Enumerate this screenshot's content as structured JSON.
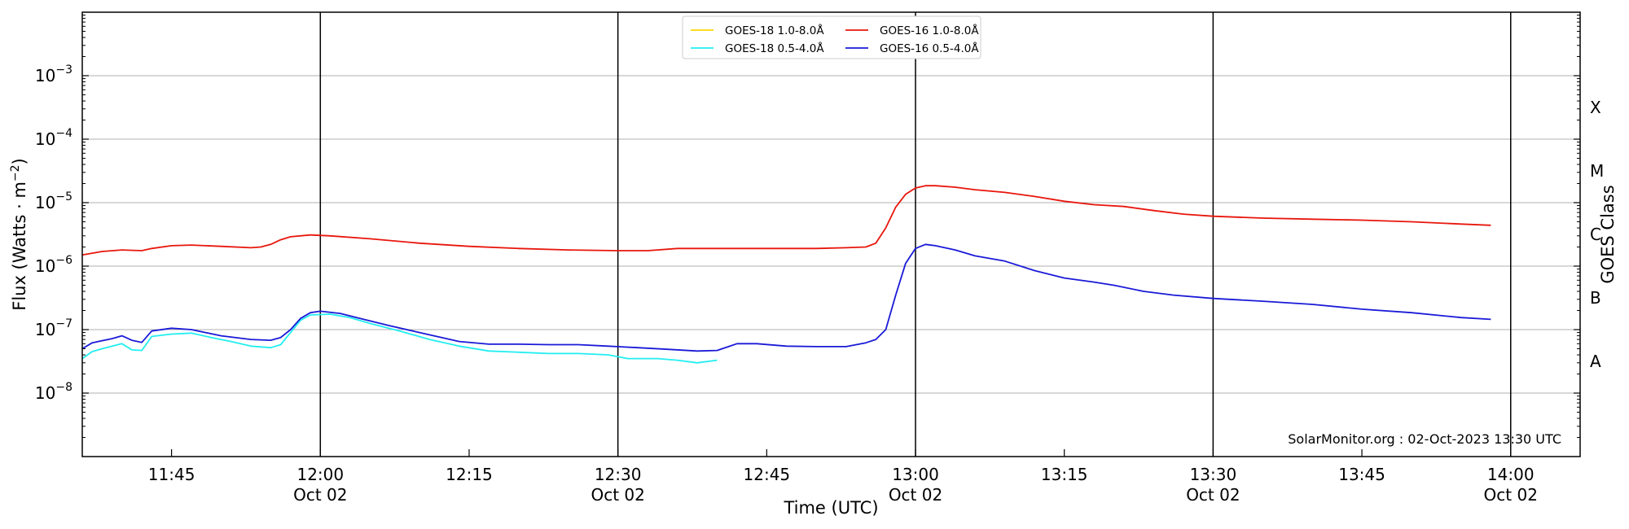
{
  "chart_data": {
    "type": "line",
    "xlabel": "Time (UTC)",
    "ylabel_main": "Flux (Watts · m",
    "ylabel_sup": "−2",
    "ylabel_close": ")",
    "right_label": "GOES Class",
    "credit": "SolarMonitor.org : 02-Oct-2023 13:30 UTC",
    "y_scale": "log",
    "ylim": [
      1e-09,
      0.01
    ],
    "xlim": [
      "11:36",
      "14:07"
    ],
    "grid": "horizontal at decades",
    "legend_position": "top-center",
    "y_ticks": [
      {
        "base": "10",
        "exp": "−8",
        "value": 1e-08
      },
      {
        "base": "10",
        "exp": "−7",
        "value": 1e-07
      },
      {
        "base": "10",
        "exp": "−6",
        "value": 1e-06
      },
      {
        "base": "10",
        "exp": "−5",
        "value": 1e-05
      },
      {
        "base": "10",
        "exp": "−4",
        "value": 0.0001
      },
      {
        "base": "10",
        "exp": "−3",
        "value": 0.001
      }
    ],
    "x_ticks": [
      {
        "time": "11:45",
        "label": "11:45",
        "date": ""
      },
      {
        "time": "12:00",
        "label": "12:00",
        "date": "Oct 02"
      },
      {
        "time": "12:15",
        "label": "12:15",
        "date": ""
      },
      {
        "time": "12:30",
        "label": "12:30",
        "date": "Oct 02"
      },
      {
        "time": "12:45",
        "label": "12:45",
        "date": ""
      },
      {
        "time": "13:00",
        "label": "13:00",
        "date": "Oct 02"
      },
      {
        "time": "13:15",
        "label": "13:15",
        "date": ""
      },
      {
        "time": "13:30",
        "label": "13:30",
        "date": "Oct 02"
      },
      {
        "time": "13:45",
        "label": "13:45",
        "date": ""
      },
      {
        "time": "14:00",
        "label": "14:00",
        "date": "Oct 02"
      }
    ],
    "goes_classes": [
      {
        "label": "A",
        "value": 3.16e-08
      },
      {
        "label": "B",
        "value": 3.16e-07
      },
      {
        "label": "C",
        "value": 3.16e-06
      },
      {
        "label": "M",
        "value": 3.16e-05
      },
      {
        "label": "X",
        "value": 0.000316
      }
    ],
    "series": [
      {
        "name": "GOES-18 1.0-8.0Å",
        "color": "#ffd700",
        "points": []
      },
      {
        "name": "GOES-16 1.0-8.0Å",
        "color": "#e8160c",
        "points": [
          [
            "11:36",
            1.5e-06
          ],
          [
            "11:38",
            1.7e-06
          ],
          [
            "11:40",
            1.8e-06
          ],
          [
            "11:42",
            1.75e-06
          ],
          [
            "11:43",
            1.9e-06
          ],
          [
            "11:45",
            2.1e-06
          ],
          [
            "11:47",
            2.15e-06
          ],
          [
            "11:50",
            2.05e-06
          ],
          [
            "11:53",
            1.95e-06
          ],
          [
            "11:54",
            2e-06
          ],
          [
            "11:55",
            2.2e-06
          ],
          [
            "11:56",
            2.6e-06
          ],
          [
            "11:57",
            2.9e-06
          ],
          [
            "11:59",
            3.1e-06
          ],
          [
            "12:01",
            3e-06
          ],
          [
            "12:05",
            2.7e-06
          ],
          [
            "12:10",
            2.3e-06
          ],
          [
            "12:15",
            2.05e-06
          ],
          [
            "12:20",
            1.9e-06
          ],
          [
            "12:25",
            1.8e-06
          ],
          [
            "12:30",
            1.75e-06
          ],
          [
            "12:33",
            1.75e-06
          ],
          [
            "12:36",
            1.9e-06
          ],
          [
            "12:40",
            1.9e-06
          ],
          [
            "12:45",
            1.9e-06
          ],
          [
            "12:50",
            1.9e-06
          ],
          [
            "12:53",
            1.95e-06
          ],
          [
            "12:55",
            2e-06
          ],
          [
            "12:56",
            2.3e-06
          ],
          [
            "12:57",
            4e-06
          ],
          [
            "12:58",
            8.5e-06
          ],
          [
            "12:59",
            1.35e-05
          ],
          [
            "13:00",
            1.7e-05
          ],
          [
            "13:01",
            1.85e-05
          ],
          [
            "13:02",
            1.85e-05
          ],
          [
            "13:04",
            1.75e-05
          ],
          [
            "13:06",
            1.6e-05
          ],
          [
            "13:09",
            1.45e-05
          ],
          [
            "13:12",
            1.25e-05
          ],
          [
            "13:15",
            1.05e-05
          ],
          [
            "13:18",
            9.3e-06
          ],
          [
            "13:21",
            8.7e-06
          ],
          [
            "13:24",
            7.5e-06
          ],
          [
            "13:27",
            6.6e-06
          ],
          [
            "13:30",
            6.1e-06
          ],
          [
            "13:35",
            5.7e-06
          ],
          [
            "13:40",
            5.5e-06
          ],
          [
            "13:45",
            5.3e-06
          ],
          [
            "13:50",
            5e-06
          ],
          [
            "13:55",
            4.6e-06
          ],
          [
            "13:58",
            4.4e-06
          ]
        ]
      },
      {
        "name": "GOES-18 0.5-4.0Å",
        "color": "#22eef0",
        "points": [
          [
            "11:36",
            3.5e-08
          ],
          [
            "11:37",
            4.5e-08
          ],
          [
            "11:38",
            5e-08
          ],
          [
            "11:40",
            6e-08
          ],
          [
            "11:41",
            4.8e-08
          ],
          [
            "11:42",
            4.7e-08
          ],
          [
            "11:43",
            7.8e-08
          ],
          [
            "11:45",
            8.5e-08
          ],
          [
            "11:47",
            8.8e-08
          ],
          [
            "11:49",
            7.5e-08
          ],
          [
            "11:51",
            6.5e-08
          ],
          [
            "11:53",
            5.5e-08
          ],
          [
            "11:55",
            5.2e-08
          ],
          [
            "11:56",
            5.8e-08
          ],
          [
            "11:57",
            9e-08
          ],
          [
            "11:58",
            1.4e-07
          ],
          [
            "11:59",
            1.7e-07
          ],
          [
            "12:01",
            1.75e-07
          ],
          [
            "12:03",
            1.55e-07
          ],
          [
            "12:05",
            1.25e-07
          ],
          [
            "12:08",
            9.5e-08
          ],
          [
            "12:11",
            7e-08
          ],
          [
            "12:14",
            5.5e-08
          ],
          [
            "12:17",
            4.6e-08
          ],
          [
            "12:20",
            4.4e-08
          ],
          [
            "12:23",
            4.2e-08
          ],
          [
            "12:26",
            4.2e-08
          ],
          [
            "12:29",
            4e-08
          ],
          [
            "12:31",
            3.5e-08
          ],
          [
            "12:34",
            3.5e-08
          ],
          [
            "12:36",
            3.3e-08
          ],
          [
            "12:38",
            3e-08
          ],
          [
            "12:40",
            3.3e-08
          ]
        ]
      },
      {
        "name": "GOES-16 0.5-4.0Å",
        "color": "#1a1ad8",
        "points": [
          [
            "11:36",
            5e-08
          ],
          [
            "11:37",
            6.2e-08
          ],
          [
            "11:39",
            7.2e-08
          ],
          [
            "11:40",
            8e-08
          ],
          [
            "11:41",
            6.8e-08
          ],
          [
            "11:42",
            6.3e-08
          ],
          [
            "11:43",
            9.5e-08
          ],
          [
            "11:45",
            1.05e-07
          ],
          [
            "11:47",
            1e-07
          ],
          [
            "11:50",
            8e-08
          ],
          [
            "11:53",
            7e-08
          ],
          [
            "11:55",
            6.8e-08
          ],
          [
            "11:56",
            7.5e-08
          ],
          [
            "11:57",
            1e-07
          ],
          [
            "11:58",
            1.5e-07
          ],
          [
            "11:59",
            1.85e-07
          ],
          [
            "12:00",
            1.95e-07
          ],
          [
            "12:02",
            1.8e-07
          ],
          [
            "12:04",
            1.5e-07
          ],
          [
            "12:07",
            1.15e-07
          ],
          [
            "12:10",
            9e-08
          ],
          [
            "12:14",
            6.5e-08
          ],
          [
            "12:17",
            5.9e-08
          ],
          [
            "12:20",
            5.9e-08
          ],
          [
            "12:23",
            5.8e-08
          ],
          [
            "12:26",
            5.8e-08
          ],
          [
            "12:29",
            5.5e-08
          ],
          [
            "12:32",
            5.2e-08
          ],
          [
            "12:35",
            4.9e-08
          ],
          [
            "12:38",
            4.6e-08
          ],
          [
            "12:40",
            4.7e-08
          ],
          [
            "12:41",
            5.3e-08
          ],
          [
            "12:42",
            6e-08
          ],
          [
            "12:44",
            6e-08
          ],
          [
            "12:47",
            5.5e-08
          ],
          [
            "12:50",
            5.4e-08
          ],
          [
            "12:53",
            5.4e-08
          ],
          [
            "12:55",
            6.2e-08
          ],
          [
            "12:56",
            7e-08
          ],
          [
            "12:57",
            1e-07
          ],
          [
            "12:58",
            3.5e-07
          ],
          [
            "12:59",
            1.1e-06
          ],
          [
            "13:00",
            1.9e-06
          ],
          [
            "13:01",
            2.2e-06
          ],
          [
            "13:02",
            2.1e-06
          ],
          [
            "13:04",
            1.8e-06
          ],
          [
            "13:06",
            1.45e-06
          ],
          [
            "13:09",
            1.2e-06
          ],
          [
            "13:12",
            8.5e-07
          ],
          [
            "13:15",
            6.5e-07
          ],
          [
            "13:18",
            5.6e-07
          ],
          [
            "13:20",
            5e-07
          ],
          [
            "13:23",
            4e-07
          ],
          [
            "13:26",
            3.5e-07
          ],
          [
            "13:30",
            3.1e-07
          ],
          [
            "13:35",
            2.8e-07
          ],
          [
            "13:40",
            2.5e-07
          ],
          [
            "13:45",
            2.1e-07
          ],
          [
            "13:50",
            1.85e-07
          ],
          [
            "13:55",
            1.55e-07
          ],
          [
            "13:58",
            1.45e-07
          ]
        ]
      }
    ],
    "legend_order": [
      0,
      2,
      1,
      3
    ]
  }
}
